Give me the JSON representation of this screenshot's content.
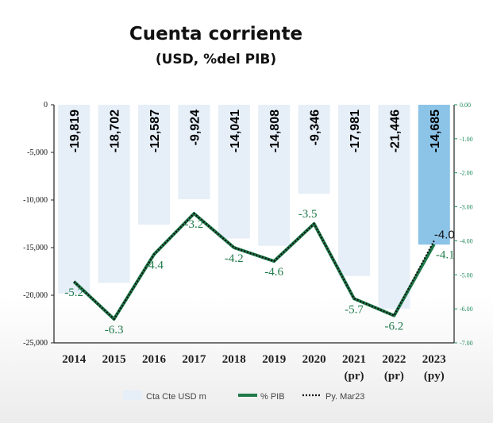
{
  "chart_data": {
    "type": "bar",
    "title": "Cuenta corriente",
    "subtitle": "(USD, %del PIB)",
    "categories": [
      {
        "year": "2014",
        "sub": ""
      },
      {
        "year": "2015",
        "sub": ""
      },
      {
        "year": "2016",
        "sub": ""
      },
      {
        "year": "2017",
        "sub": ""
      },
      {
        "year": "2018",
        "sub": ""
      },
      {
        "year": "2019",
        "sub": ""
      },
      {
        "year": "2020",
        "sub": ""
      },
      {
        "year": "2021",
        "sub": "(pr)"
      },
      {
        "year": "2022",
        "sub": "(pr)"
      },
      {
        "year": "2023",
        "sub": "(py)"
      }
    ],
    "bars": {
      "name": "Cta Cte USD m",
      "values": [
        -19819,
        -18702,
        -12587,
        -9924,
        -14041,
        -14808,
        -9346,
        -17981,
        -21446,
        -14685
      ],
      "labels": [
        "-19,819",
        "-18,702",
        "-12,587",
        "-9,924",
        "-14,041",
        "-14,808",
        "-9,346",
        "-17,981",
        "-21,446",
        "-14,685"
      ],
      "colors": [
        "#e6eef8",
        "#e6eef8",
        "#e6eef8",
        "#e6eef8",
        "#e6eef8",
        "#e6eef8",
        "#e6eef8",
        "#e6eef8",
        "#e6eef8",
        "#8cc4e8"
      ]
    },
    "pib": {
      "name": "% PIB",
      "values": [
        -5.2,
        -6.3,
        -4.4,
        -3.2,
        -4.2,
        -4.6,
        -3.5,
        -5.7,
        -6.2,
        -4.1
      ],
      "labels": [
        "-5.2",
        "-6.3",
        "-4.4",
        "-3.2",
        "-4.2",
        "-4.6",
        "-3.5",
        "-5.7",
        "-6.2",
        "-4.1"
      ],
      "color": "#1f7a4a"
    },
    "projection": {
      "name": "Py. Mar23",
      "values": [
        -5.2,
        -6.3,
        -4.4,
        -3.2,
        -4.2,
        -4.6,
        -3.5,
        -5.7,
        -6.2,
        -4.0
      ],
      "last_label": "-4.0",
      "color": "#111111"
    },
    "y_left": {
      "min": -25000,
      "max": 0,
      "ticks": [
        0,
        -5000,
        -10000,
        -15000,
        -20000,
        -25000
      ],
      "tick_labels": [
        "0",
        "-5,000",
        "-10,000",
        "-15,000",
        "-20,000",
        "-25,000"
      ]
    },
    "y_right": {
      "min": -7,
      "max": 0,
      "ticks": [
        0,
        -1,
        -2,
        -3,
        -4,
        -5,
        -6,
        -7
      ],
      "tick_labels": [
        "0.00",
        "-1.00",
        "-2.00",
        "-3.00",
        "-4.00",
        "-5.00",
        "-6.00",
        "-7.00"
      ],
      "color": "#1f8a5c"
    },
    "legend_position": "bottom"
  }
}
